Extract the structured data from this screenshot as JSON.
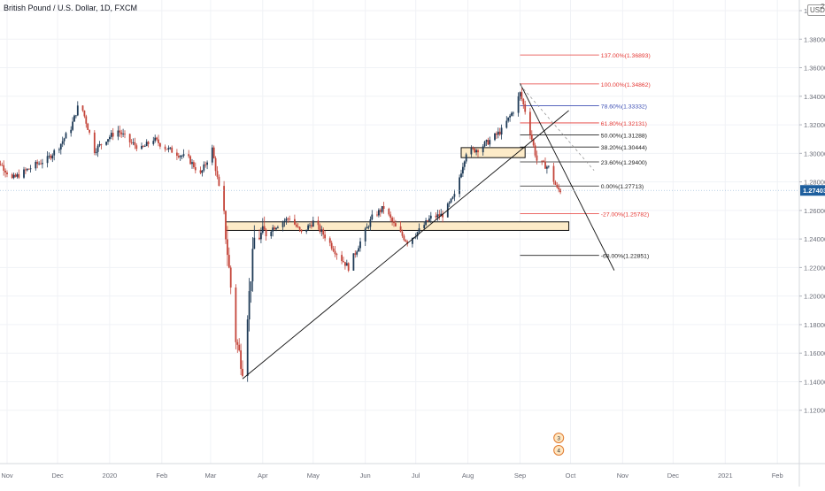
{
  "header": {
    "title": "British Pound / U.S. Dollar, 1D, FXCM",
    "currency_badge": "USD",
    "corner_digit": "2"
  },
  "colors": {
    "up_candle": "#1f3b57",
    "down_candle": "#c4453a",
    "price_badge_bg": "#1e5f9e",
    "fib_red": "#e53935",
    "fib_blue": "#3f51b5",
    "fib_black": "#222222",
    "zone_fill": "#fdebc8"
  },
  "chart_data": {
    "type": "candlestick",
    "symbol": "GBPUSD",
    "timeframe": "1D",
    "exchange": "FXCM",
    "ylim": [
      1.112,
      1.416
    ],
    "x_ticks": [
      "Nov",
      "Dec",
      "2020",
      "Feb",
      "Mar",
      "Apr",
      "May",
      "Jun",
      "Jul",
      "Aug",
      "Sep",
      "Oct",
      "Nov",
      "Dec",
      "2021",
      "Feb"
    ],
    "y_ticks": [
      "1.40000",
      "1.38000",
      "1.36000",
      "1.34000",
      "1.32000",
      "1.30000",
      "1.28000",
      "1.26000",
      "1.24000",
      "1.22000",
      "1.20000",
      "1.18000",
      "1.16000",
      "1.14000",
      "1.12000"
    ],
    "y_tick_values": [
      1.4,
      1.38,
      1.36,
      1.34,
      1.32,
      1.3,
      1.28,
      1.26,
      1.24,
      1.22,
      1.2,
      1.18,
      1.16,
      1.14,
      1.12
    ],
    "last_price": "1.27403",
    "last_price_value": 1.27403,
    "close_path": [
      [
        "2019-10-21",
        1.29
      ],
      [
        "2019-10-28",
        1.293
      ],
      [
        "2019-11-04",
        1.282
      ],
      [
        "2019-11-11",
        1.287
      ],
      [
        "2019-11-18",
        1.292
      ],
      [
        "2019-11-25",
        1.296
      ],
      [
        "2019-12-02",
        1.305
      ],
      [
        "2019-12-09",
        1.318
      ],
      [
        "2019-12-13",
        1.332
      ],
      [
        "2019-12-16",
        1.33
      ],
      [
        "2019-12-23",
        1.302
      ],
      [
        "2019-12-30",
        1.31
      ],
      [
        "2020-01-06",
        1.316
      ],
      [
        "2020-01-13",
        1.308
      ],
      [
        "2020-01-20",
        1.303
      ],
      [
        "2020-01-27",
        1.31
      ],
      [
        "2020-02-03",
        1.304
      ],
      [
        "2020-02-10",
        1.3
      ],
      [
        "2020-02-17",
        1.296
      ],
      [
        "2020-02-24",
        1.285
      ],
      [
        "2020-03-02",
        1.303
      ],
      [
        "2020-03-09",
        1.255
      ],
      [
        "2020-03-16",
        1.17
      ],
      [
        "2020-03-20",
        1.15
      ],
      [
        "2020-03-27",
        1.24
      ],
      [
        "2020-04-03",
        1.245
      ],
      [
        "2020-04-10",
        1.25
      ],
      [
        "2020-04-17",
        1.255
      ],
      [
        "2020-04-24",
        1.244
      ],
      [
        "2020-05-01",
        1.252
      ],
      [
        "2020-05-08",
        1.242
      ],
      [
        "2020-05-15",
        1.23
      ],
      [
        "2020-05-22",
        1.22
      ],
      [
        "2020-05-29",
        1.238
      ],
      [
        "2020-06-05",
        1.255
      ],
      [
        "2020-06-12",
        1.262
      ],
      [
        "2020-06-19",
        1.248
      ],
      [
        "2020-06-26",
        1.238
      ],
      [
        "2020-07-03",
        1.246
      ],
      [
        "2020-07-10",
        1.255
      ],
      [
        "2020-07-17",
        1.257
      ],
      [
        "2020-07-24",
        1.27
      ],
      [
        "2020-07-31",
        1.301
      ],
      [
        "2020-08-07",
        1.303
      ],
      [
        "2020-08-14",
        1.309
      ],
      [
        "2020-08-21",
        1.316
      ],
      [
        "2020-08-28",
        1.33
      ],
      [
        "2020-09-01",
        1.342
      ],
      [
        "2020-09-04",
        1.33
      ],
      [
        "2020-09-11",
        1.295
      ],
      [
        "2020-09-18",
        1.29
      ],
      [
        "2020-09-23",
        1.275
      ],
      [
        "2020-09-25",
        1.274
      ]
    ],
    "fib_levels": [
      {
        "ratio": "137.00%",
        "price": "1.36893",
        "color": "red"
      },
      {
        "ratio": "100.00%",
        "price": "1.34862",
        "color": "red"
      },
      {
        "ratio": "78.60%",
        "price": "1.33332",
        "color": "blue"
      },
      {
        "ratio": "61.80%",
        "price": "1.32131",
        "color": "red"
      },
      {
        "ratio": "50.00%",
        "price": "1.31288",
        "color": "black"
      },
      {
        "ratio": "38.20%",
        "price": "1.30444",
        "color": "black"
      },
      {
        "ratio": "23.60%",
        "price": "1.29400",
        "color": "black"
      },
      {
        "ratio": "0.00%",
        "price": "1.27713",
        "color": "black"
      },
      {
        "ratio": "-27.00%",
        "price": "1.25782",
        "color": "red"
      },
      {
        "ratio": "-68.00%",
        "price": "1.22851",
        "color": "black"
      }
    ],
    "zones": [
      {
        "from": "2020-03-10",
        "to": "2020-09-30",
        "top": 1.252,
        "bottom": 1.246
      },
      {
        "from": "2020-07-28",
        "to": "2020-09-04",
        "top": 1.304,
        "bottom": 1.297
      }
    ],
    "trendlines": [
      {
        "from": [
          "2020-03-20",
          1.142
        ],
        "to": [
          "2020-09-30",
          1.33
        ]
      },
      {
        "from": [
          "2020-09-01",
          1.349
        ],
        "to": [
          "2020-10-27",
          1.218
        ]
      }
    ],
    "bottom_markers": [
      "3",
      "4"
    ]
  }
}
